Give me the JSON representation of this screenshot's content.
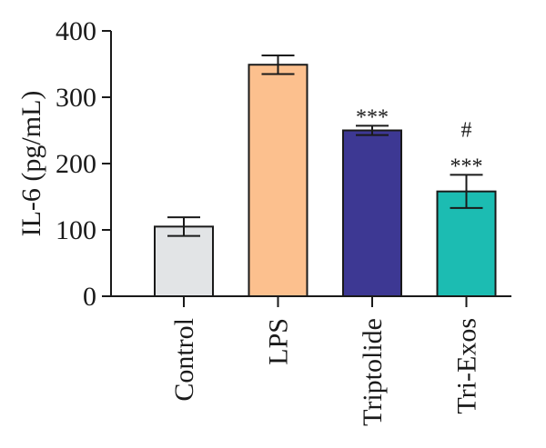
{
  "chart_data": {
    "type": "bar",
    "title": "",
    "xlabel": "",
    "ylabel": "IL-6 (pg/mL)",
    "ylim": [
      0,
      400
    ],
    "yticks": [
      0,
      100,
      200,
      300,
      400
    ],
    "categories": [
      "Control",
      "LPS",
      "Triptolide",
      "Tri-Exos"
    ],
    "values": [
      105,
      349,
      250,
      158
    ],
    "errors": [
      14,
      14,
      7,
      25
    ],
    "annotations": [
      [],
      [],
      [
        "***"
      ],
      [
        "#",
        "***"
      ]
    ],
    "colors": [
      "#e2e4e6",
      "#fcc08e",
      "#3d3893",
      "#1cbcb2"
    ],
    "grid": false,
    "legend": "none"
  }
}
